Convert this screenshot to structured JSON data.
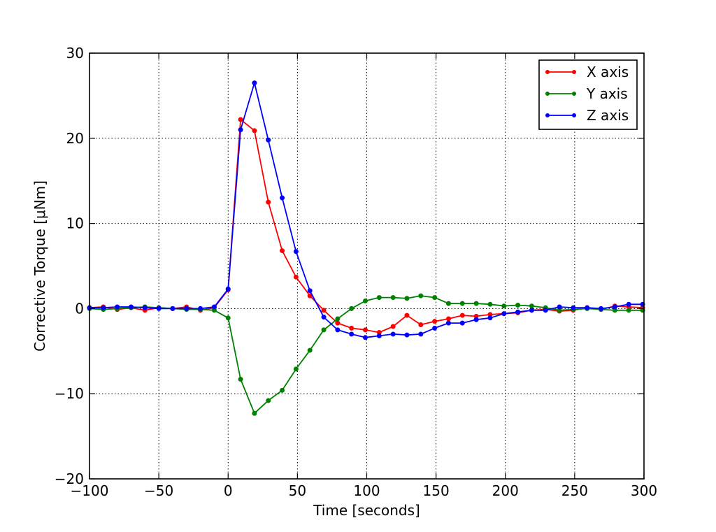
{
  "chart_data": {
    "type": "line",
    "title": "",
    "xlabel": "Time [seconds]",
    "ylabel": "Corrective Torque [μNm]",
    "xlim": [
      -100,
      300
    ],
    "ylim": [
      -20,
      30
    ],
    "xticks": [
      -100,
      -50,
      0,
      50,
      100,
      150,
      200,
      250,
      300
    ],
    "yticks": [
      -20,
      -10,
      0,
      10,
      20,
      30
    ],
    "xtick_labels": [
      "−100",
      "−50",
      "0",
      "50",
      "100",
      "150",
      "200",
      "250",
      "300"
    ],
    "ytick_labels": [
      "−20",
      "−10",
      "0",
      "10",
      "20",
      "30"
    ],
    "grid": true,
    "legend_position": "top-right",
    "x": [
      -100,
      -90,
      -80,
      -70,
      -60,
      -50,
      -40,
      -30,
      -20,
      -10,
      0,
      9,
      19,
      29,
      39,
      49,
      59,
      69,
      79,
      89,
      99,
      109,
      119,
      129,
      139,
      149,
      159,
      169,
      179,
      189,
      199,
      209,
      219,
      229,
      239,
      249,
      259,
      269,
      279,
      289,
      299
    ],
    "series": [
      {
        "name": "X axis",
        "color": "#ff0000",
        "values": [
          0.1,
          0.2,
          -0.1,
          0.1,
          -0.2,
          0.1,
          0.0,
          0.2,
          -0.2,
          0.1,
          2.2,
          22.2,
          20.9,
          12.5,
          6.8,
          3.7,
          1.5,
          -0.2,
          -1.7,
          -2.3,
          -2.5,
          -2.8,
          -2.1,
          -0.8,
          -1.9,
          -1.5,
          -1.2,
          -0.8,
          -0.9,
          -0.7,
          -0.6,
          -0.5,
          -0.2,
          -0.1,
          -0.3,
          -0.2,
          0.1,
          -0.1,
          0.3,
          0.2,
          0.1
        ]
      },
      {
        "name": "Y axis",
        "color": "#008000",
        "values": [
          0.0,
          -0.1,
          0.0,
          0.1,
          0.2,
          0.1,
          0.0,
          -0.1,
          -0.1,
          -0.2,
          -1.1,
          -8.3,
          -12.3,
          -10.8,
          -9.6,
          -7.1,
          -4.9,
          -2.5,
          -1.2,
          0.0,
          0.9,
          1.3,
          1.3,
          1.2,
          1.5,
          1.3,
          0.6,
          0.6,
          0.6,
          0.5,
          0.3,
          0.4,
          0.3,
          0.1,
          -0.2,
          -0.1,
          0.0,
          -0.1,
          -0.2,
          -0.2,
          -0.2
        ]
      },
      {
        "name": "Z axis",
        "color": "#0000ff",
        "values": [
          0.1,
          0.1,
          0.2,
          0.2,
          0.1,
          0.0,
          0.0,
          0.0,
          0.0,
          0.2,
          2.3,
          21.0,
          26.5,
          19.8,
          13.0,
          6.7,
          2.1,
          -1.0,
          -2.5,
          -3.0,
          -3.4,
          -3.2,
          -3.0,
          -3.1,
          -3.0,
          -2.3,
          -1.7,
          -1.7,
          -1.3,
          -1.1,
          -0.6,
          -0.4,
          -0.2,
          -0.2,
          0.2,
          0.1,
          0.1,
          0.0,
          0.2,
          0.5,
          0.5
        ]
      }
    ]
  }
}
